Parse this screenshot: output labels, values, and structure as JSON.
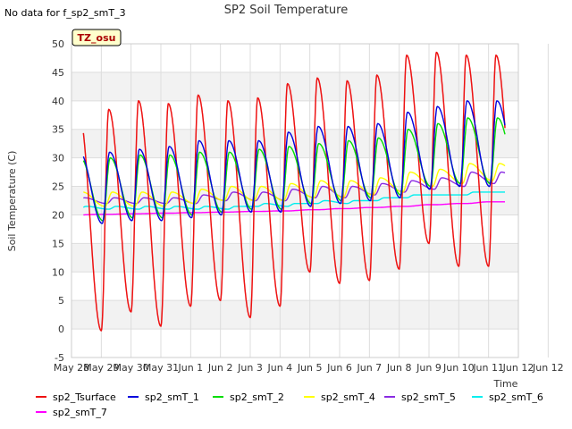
{
  "chart_data": {
    "type": "line",
    "title": "SP2 Soil Temperature",
    "note": "No data for f_sp2_smT_3",
    "badge": "TZ_osu",
    "xlabel": "Time",
    "ylabel": "Soil Temperature (C)",
    "ylim": [
      -5,
      50
    ],
    "yticks": [
      "-5",
      "0",
      "5",
      "10",
      "15",
      "20",
      "25",
      "30",
      "35",
      "40",
      "45",
      "50"
    ],
    "xlim": [
      0,
      15
    ],
    "xticks": [
      "May 28",
      "May 29",
      "May 30",
      "May 31",
      "Jun 1",
      "Jun 2",
      "Jun 3",
      "Jun 4",
      "Jun 5",
      "Jun 6",
      "Jun 7",
      "Jun 8",
      "Jun 9",
      "Jun 10",
      "Jun 11",
      "Jun 12",
      "Jun 12"
    ],
    "grid": true,
    "series": [
      {
        "name": "sp2_Tsurface",
        "color": "#ee1111",
        "mins": [
          1.0,
          -0.3,
          3.0,
          0.5,
          4.0,
          5.0,
          2.0,
          4.0,
          10.0,
          8.0,
          8.5,
          10.5,
          15.0,
          11.0,
          11.0
        ],
        "maxs": [
          38.0,
          38.5,
          40.0,
          39.5,
          41.0,
          40.0,
          40.5,
          43.0,
          44.0,
          43.5,
          44.5,
          48.0,
          48.5,
          48.0
        ]
      },
      {
        "name": "sp2_smT_1",
        "color": "#0000dd",
        "mins": [
          19.0,
          18.5,
          19.0,
          19.0,
          19.5,
          20.0,
          20.5,
          20.5,
          21.5,
          22.0,
          22.5,
          23.0,
          24.5,
          25.0,
          25.0
        ],
        "maxs": [
          31.0,
          31.0,
          31.5,
          32.0,
          33.0,
          33.0,
          33.0,
          34.5,
          35.5,
          35.5,
          36.0,
          38.0,
          39.0,
          40.0
        ]
      },
      {
        "name": "sp2_smT_2",
        "color": "#00dd00",
        "mins": [
          19.5,
          19.0,
          19.5,
          19.5,
          20.0,
          20.5,
          21.0,
          21.0,
          22.0,
          22.5,
          23.0,
          23.5,
          25.0,
          25.5,
          25.5
        ],
        "maxs": [
          30.0,
          30.0,
          30.5,
          30.5,
          31.0,
          31.0,
          31.5,
          32.0,
          32.5,
          33.0,
          33.5,
          35.0,
          36.0,
          37.0
        ]
      },
      {
        "name": "sp2_smT_4",
        "color": "#ffff00",
        "mins": [
          22.0,
          21.5,
          21.5,
          21.5,
          22.0,
          22.5,
          22.5,
          22.5,
          23.0,
          23.0,
          23.5,
          24.0,
          25.0,
          25.5,
          26.0
        ],
        "maxs": [
          24.0,
          24.0,
          24.0,
          24.0,
          24.5,
          25.0,
          25.0,
          25.5,
          26.0,
          26.0,
          26.5,
          27.5,
          28.0,
          29.0
        ]
      },
      {
        "name": "sp2_smT_5",
        "color": "#8a2be2",
        "mins": [
          22.5,
          22.0,
          22.0,
          22.0,
          22.0,
          22.5,
          22.5,
          22.5,
          23.0,
          23.0,
          23.5,
          24.0,
          24.5,
          25.0,
          25.5
        ],
        "maxs": [
          23.0,
          23.0,
          23.0,
          23.0,
          23.5,
          24.0,
          24.0,
          24.5,
          25.0,
          25.0,
          25.5,
          26.0,
          26.5,
          27.5
        ]
      },
      {
        "name": "sp2_smT_6",
        "color": "#00eeee",
        "mins": [
          21.0,
          21.0,
          21.0,
          21.0,
          21.0,
          21.0,
          21.5,
          21.5,
          22.0,
          22.0,
          22.5,
          23.0,
          23.5,
          23.5,
          24.0
        ],
        "maxs": [
          21.5,
          21.5,
          21.5,
          21.5,
          21.5,
          21.5,
          22.0,
          22.0,
          22.5,
          22.5,
          23.0,
          23.5,
          23.5,
          24.0
        ]
      },
      {
        "name": "sp2_smT_7",
        "color": "#ff00ff",
        "mins": [
          20.0,
          20.1,
          20.2,
          20.3,
          20.4,
          20.5,
          20.6,
          20.7,
          20.9,
          21.1,
          21.3,
          21.5,
          21.8,
          22.0,
          22.3
        ],
        "maxs": [
          20.0,
          20.1,
          20.2,
          20.3,
          20.4,
          20.5,
          20.6,
          20.7,
          20.9,
          21.1,
          21.3,
          21.5,
          21.8,
          22.0,
          22.3
        ]
      }
    ]
  }
}
